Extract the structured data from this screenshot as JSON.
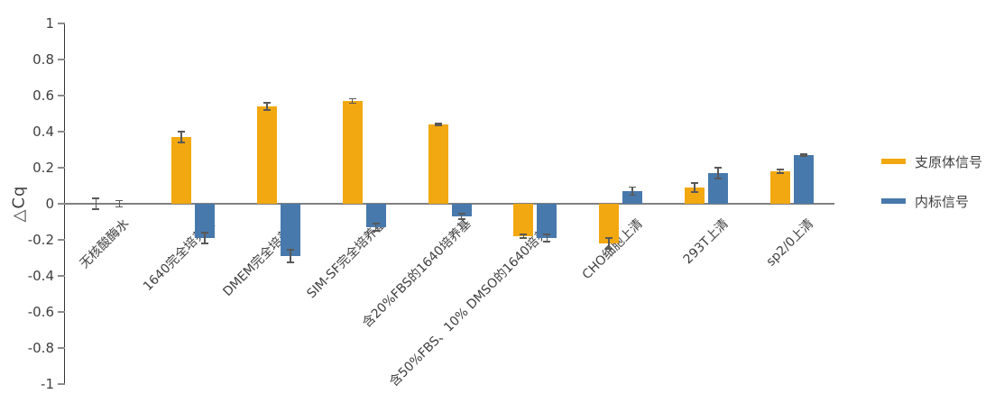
{
  "chart_data": {
    "type": "bar",
    "title": "",
    "xlabel": "",
    "ylabel": "△Cq",
    "ylim": [
      -1,
      1
    ],
    "ytick_step": 0.2,
    "grid": false,
    "legend_position": "right",
    "error_bars": true,
    "categories": [
      "无核酸酶水",
      "1640完全培养基",
      "DMEM完全培养基",
      "SIM-SF完全培养基",
      "含20%FBS的1640培养基",
      "含50%FBS、10% DMSO的1640培养基",
      "CHO细胞上清",
      "293T上清",
      "sp2/0上清"
    ],
    "series": [
      {
        "name": "支原体信号",
        "color": "#F2A810",
        "values": [
          0,
          0.37,
          0.54,
          0.57,
          0.44,
          -0.18,
          -0.22,
          0.09,
          0.18
        ],
        "errors": [
          0.03,
          0.03,
          0.02,
          0.012,
          0.006,
          0.01,
          0.03,
          0.025,
          0.01
        ]
      },
      {
        "name": "内标信号",
        "color": "#4879AC",
        "values": [
          0,
          -0.19,
          -0.29,
          -0.13,
          -0.07,
          -0.19,
          0.07,
          0.17,
          0.27
        ],
        "errors": [
          0.018,
          0.03,
          0.035,
          0.02,
          0.015,
          0.02,
          0.022,
          0.03,
          0.006
        ]
      }
    ]
  },
  "colors": {
    "background": "#FFFFFF",
    "y_axis_line": "#333333",
    "zero_line": "#808080",
    "tick_mark": "#8C8C8C",
    "error_bar": "#595959",
    "text": "#404040"
  }
}
